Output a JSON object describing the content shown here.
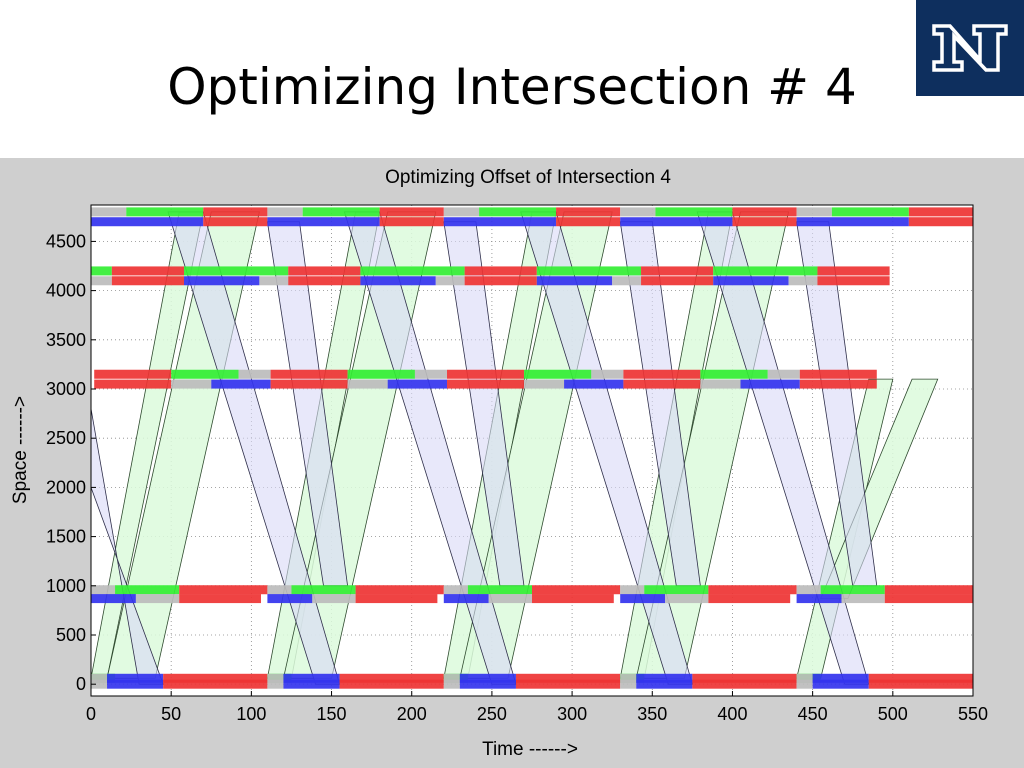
{
  "slide": {
    "title": "Optimizing Intersection # 4",
    "logo_text": "N"
  },
  "colors": {
    "logo_bg": "#0e2f5e",
    "green": "#33ee33",
    "red": "#ee3333",
    "blue": "#3333ee",
    "gray": "#bcbcbc",
    "band_green_fill": "#dcfadc",
    "band_blue_fill": "#d8d8f6",
    "figure_bg": "#cfcfcf"
  },
  "chart_data": {
    "type": "time-space diagram",
    "title": "Optimizing Offset of Intersection 4",
    "xlabel": "Time ------>",
    "ylabel": "Space ------>",
    "xlim": [
      0,
      550
    ],
    "ylim": [
      -120,
      4870
    ],
    "xticks": [
      0,
      50,
      100,
      150,
      200,
      250,
      300,
      350,
      400,
      450,
      500,
      550
    ],
    "yticks": [
      0,
      500,
      1000,
      1500,
      2000,
      2500,
      3000,
      3500,
      4000,
      4500
    ],
    "grid": true,
    "signal_bars": [
      {
        "name": "intersection-1-northbound",
        "y": 60,
        "phases": [
          [
            "green",
            0,
            15
          ],
          [
            "gray",
            0,
            10
          ],
          [
            "blue",
            10,
            45
          ],
          [
            "red",
            45,
            110
          ],
          [
            "green",
            110,
            125
          ],
          [
            "gray",
            110,
            120
          ],
          [
            "blue",
            120,
            155
          ],
          [
            "red",
            155,
            220
          ],
          [
            "green",
            220,
            235
          ],
          [
            "gray",
            220,
            230
          ],
          [
            "blue",
            230,
            265
          ],
          [
            "red",
            265,
            330
          ],
          [
            "green",
            330,
            345
          ],
          [
            "gray",
            330,
            340
          ],
          [
            "blue",
            340,
            375
          ],
          [
            "red",
            375,
            440
          ],
          [
            "green",
            440,
            455
          ],
          [
            "gray",
            440,
            450
          ],
          [
            "blue",
            450,
            485
          ],
          [
            "red",
            485,
            550
          ]
        ]
      },
      {
        "name": "intersection-1-southbound",
        "y": 0,
        "phases": [
          [
            "gray",
            0,
            10
          ],
          [
            "blue",
            10,
            45
          ],
          [
            "red",
            45,
            110
          ],
          [
            "gray",
            110,
            120
          ],
          [
            "blue",
            120,
            155
          ],
          [
            "red",
            155,
            220
          ],
          [
            "gray",
            220,
            230
          ],
          [
            "blue",
            230,
            265
          ],
          [
            "red",
            265,
            330
          ],
          [
            "gray",
            330,
            340
          ],
          [
            "blue",
            340,
            375
          ],
          [
            "red",
            375,
            440
          ],
          [
            "gray",
            440,
            450
          ],
          [
            "blue",
            450,
            485
          ],
          [
            "red",
            485,
            550
          ]
        ]
      },
      {
        "name": "intersection-2-upper",
        "y": 960,
        "phases": [
          [
            "gray",
            0,
            15
          ],
          [
            "green",
            15,
            55
          ],
          [
            "red",
            55,
            110
          ],
          [
            "gray",
            110,
            125
          ],
          [
            "green",
            125,
            165
          ],
          [
            "red",
            165,
            220
          ],
          [
            "gray",
            220,
            235
          ],
          [
            "green",
            235,
            275
          ],
          [
            "red",
            275,
            330
          ],
          [
            "gray",
            330,
            345
          ],
          [
            "green",
            345,
            385
          ],
          [
            "red",
            385,
            440
          ],
          [
            "gray",
            440,
            455
          ],
          [
            "green",
            455,
            495
          ],
          [
            "red",
            495,
            550
          ]
        ]
      },
      {
        "name": "intersection-2-lower",
        "y": 870,
        "phases": [
          [
            "blue",
            0,
            28
          ],
          [
            "gray",
            28,
            55
          ],
          [
            "red",
            55,
            106
          ],
          [
            "blue",
            110,
            138
          ],
          [
            "gray",
            138,
            165
          ],
          [
            "red",
            165,
            216
          ],
          [
            "blue",
            220,
            248
          ],
          [
            "gray",
            248,
            275
          ],
          [
            "red",
            275,
            326
          ],
          [
            "blue",
            330,
            358
          ],
          [
            "gray",
            358,
            385
          ],
          [
            "red",
            385,
            436
          ],
          [
            "blue",
            440,
            468
          ],
          [
            "gray",
            468,
            495
          ],
          [
            "red",
            495,
            550
          ]
        ]
      },
      {
        "name": "intersection-3-upper",
        "y": 3150,
        "phases": [
          [
            "red",
            2,
            50
          ],
          [
            "green",
            50,
            92
          ],
          [
            "gray",
            92,
            112
          ],
          [
            "red",
            112,
            160
          ],
          [
            "green",
            160,
            202
          ],
          [
            "gray",
            202,
            222
          ],
          [
            "red",
            222,
            270
          ],
          [
            "green",
            270,
            312
          ],
          [
            "gray",
            312,
            332
          ],
          [
            "red",
            332,
            380
          ],
          [
            "green",
            380,
            422
          ],
          [
            "gray",
            422,
            442
          ],
          [
            "red",
            442,
            490
          ]
        ]
      },
      {
        "name": "intersection-3-lower",
        "y": 3050,
        "phases": [
          [
            "red",
            2,
            50
          ],
          [
            "gray",
            50,
            75
          ],
          [
            "blue",
            75,
            112
          ],
          [
            "red",
            112,
            160
          ],
          [
            "gray",
            160,
            185
          ],
          [
            "blue",
            185,
            222
          ],
          [
            "red",
            222,
            270
          ],
          [
            "gray",
            270,
            295
          ],
          [
            "blue",
            295,
            332
          ],
          [
            "red",
            332,
            380
          ],
          [
            "gray",
            380,
            405
          ],
          [
            "blue",
            405,
            442
          ],
          [
            "red",
            442,
            490
          ]
        ]
      },
      {
        "name": "intersection-4-upper",
        "y": 4200,
        "phases": [
          [
            "green",
            0,
            13
          ],
          [
            "red",
            13,
            58
          ],
          [
            "green",
            58,
            123
          ],
          [
            "red",
            123,
            168
          ],
          [
            "green",
            168,
            233
          ],
          [
            "red",
            233,
            278
          ],
          [
            "green",
            278,
            343
          ],
          [
            "red",
            343,
            388
          ],
          [
            "green",
            388,
            453
          ],
          [
            "red",
            453,
            498
          ]
        ]
      },
      {
        "name": "intersection-4-lower",
        "y": 4100,
        "phases": [
          [
            "gray",
            0,
            13
          ],
          [
            "red",
            13,
            58
          ],
          [
            "blue",
            58,
            105
          ],
          [
            "gray",
            105,
            123
          ],
          [
            "red",
            123,
            168
          ],
          [
            "blue",
            168,
            215
          ],
          [
            "gray",
            215,
            233
          ],
          [
            "red",
            233,
            278
          ],
          [
            "blue",
            278,
            325
          ],
          [
            "gray",
            325,
            343
          ],
          [
            "red",
            343,
            388
          ],
          [
            "blue",
            388,
            435
          ],
          [
            "gray",
            435,
            453
          ],
          [
            "red",
            453,
            498
          ]
        ]
      },
      {
        "name": "intersection-5-upper",
        "y": 4800,
        "phases": [
          [
            "gray",
            0,
            22
          ],
          [
            "green",
            22,
            70
          ],
          [
            "red",
            70,
            110
          ],
          [
            "gray",
            110,
            132
          ],
          [
            "green",
            132,
            180
          ],
          [
            "red",
            180,
            220
          ],
          [
            "gray",
            220,
            242
          ],
          [
            "green",
            242,
            290
          ],
          [
            "red",
            290,
            330
          ],
          [
            "gray",
            330,
            352
          ],
          [
            "green",
            352,
            400
          ],
          [
            "red",
            400,
            440
          ],
          [
            "gray",
            440,
            462
          ],
          [
            "green",
            462,
            510
          ],
          [
            "red",
            510,
            550
          ]
        ]
      },
      {
        "name": "intersection-5-lower",
        "y": 4700,
        "phases": [
          [
            "blue",
            0,
            70
          ],
          [
            "red",
            70,
            110
          ],
          [
            "blue",
            110,
            180
          ],
          [
            "red",
            180,
            220
          ],
          [
            "blue",
            220,
            290
          ],
          [
            "red",
            290,
            330
          ],
          [
            "blue",
            330,
            400
          ],
          [
            "red",
            400,
            440
          ],
          [
            "blue",
            440,
            510
          ],
          [
            "red",
            510,
            550
          ]
        ]
      }
    ],
    "green_bands": [
      {
        "polygon": [
          [
            0,
            60
          ],
          [
            10,
            60
          ],
          [
            70,
            4800
          ],
          [
            55,
            4800
          ]
        ]
      },
      {
        "polygon": [
          [
            10,
            60
          ],
          [
            40,
            60
          ],
          [
            105,
            4800
          ],
          [
            75,
            4800
          ]
        ]
      },
      {
        "polygon": [
          [
            110,
            60
          ],
          [
            125,
            60
          ],
          [
            180,
            4800
          ],
          [
            165,
            4800
          ]
        ]
      },
      {
        "polygon": [
          [
            120,
            60
          ],
          [
            150,
            60
          ],
          [
            215,
            4800
          ],
          [
            185,
            4800
          ]
        ]
      },
      {
        "polygon": [
          [
            220,
            60
          ],
          [
            235,
            60
          ],
          [
            290,
            4800
          ],
          [
            275,
            4800
          ]
        ]
      },
      {
        "polygon": [
          [
            230,
            60
          ],
          [
            260,
            60
          ],
          [
            325,
            4800
          ],
          [
            295,
            4800
          ]
        ]
      },
      {
        "polygon": [
          [
            330,
            60
          ],
          [
            345,
            60
          ],
          [
            400,
            4800
          ],
          [
            385,
            4800
          ]
        ]
      },
      {
        "polygon": [
          [
            340,
            60
          ],
          [
            370,
            60
          ],
          [
            435,
            4800
          ],
          [
            405,
            4800
          ]
        ]
      },
      {
        "polygon": [
          [
            440,
            60
          ],
          [
            455,
            60
          ],
          [
            500,
            3100
          ],
          [
            485,
            3100
          ]
        ]
      },
      {
        "polygon": [
          [
            455,
            870
          ],
          [
            472,
            870
          ],
          [
            528,
            3100
          ],
          [
            512,
            3100
          ]
        ]
      }
    ],
    "blue_bands": [
      {
        "polygon": [
          [
            0,
            2800
          ],
          [
            0,
            2000
          ],
          [
            45,
            0
          ],
          [
            30,
            0
          ]
        ]
      },
      {
        "polygon": [
          [
            48,
            4800
          ],
          [
            70,
            4800
          ],
          [
            155,
            0
          ],
          [
            140,
            0
          ]
        ]
      },
      {
        "polygon": [
          [
            110,
            4700
          ],
          [
            130,
            4700
          ],
          [
            160,
            1000
          ],
          [
            145,
            1000
          ]
        ]
      },
      {
        "polygon": [
          [
            158,
            4800
          ],
          [
            180,
            4800
          ],
          [
            265,
            0
          ],
          [
            250,
            0
          ]
        ]
      },
      {
        "polygon": [
          [
            220,
            4700
          ],
          [
            240,
            4700
          ],
          [
            270,
            1000
          ],
          [
            255,
            1000
          ]
        ]
      },
      {
        "polygon": [
          [
            268,
            4800
          ],
          [
            290,
            4800
          ],
          [
            375,
            0
          ],
          [
            360,
            0
          ]
        ]
      },
      {
        "polygon": [
          [
            330,
            4700
          ],
          [
            350,
            4700
          ],
          [
            380,
            1000
          ],
          [
            365,
            1000
          ]
        ]
      },
      {
        "polygon": [
          [
            378,
            4800
          ],
          [
            400,
            4800
          ],
          [
            485,
            0
          ],
          [
            470,
            0
          ]
        ]
      },
      {
        "polygon": [
          [
            440,
            4700
          ],
          [
            460,
            4700
          ],
          [
            490,
            1000
          ],
          [
            475,
            1000
          ]
        ]
      }
    ]
  }
}
